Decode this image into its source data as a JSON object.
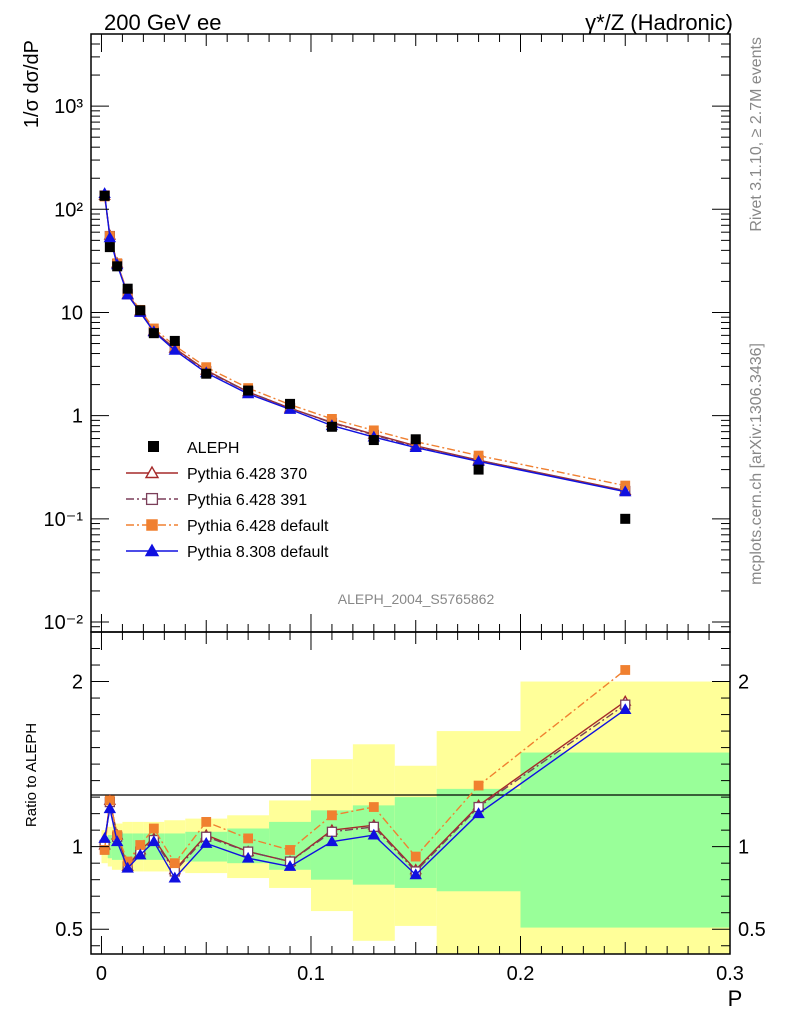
{
  "header": {
    "left": "200 GeV ee",
    "right": "γ*/Z (Hadronic)"
  },
  "side_text": {
    "events": "Rivet 3.1.10, ≥ 2.7M events",
    "source": "mcplots.cern.ch [arXiv:1306.3436]"
  },
  "chart_data": [
    {
      "type": "scatter",
      "panel": "main",
      "ylabel": "1/σ  dσ/dP",
      "yscale": "log",
      "ylim": [
        0.008,
        5000
      ],
      "xlim": [
        -0.005,
        0.3
      ],
      "y_tick_labels": [
        "10⁻²",
        "10⁻¹",
        "1",
        "10",
        "10²",
        "10³"
      ],
      "watermark": "ALEPH_2004_S5765862",
      "data": {
        "name": "ALEPH",
        "color": "#000000",
        "x": [
          0.0015,
          0.004,
          0.0075,
          0.0125,
          0.0185,
          0.025,
          0.035,
          0.05,
          0.07,
          0.09,
          0.11,
          0.13,
          0.15,
          0.18,
          0.25
        ],
        "y": [
          135,
          43,
          28,
          17,
          10.5,
          6.3,
          5.3,
          2.55,
          1.75,
          1.3,
          0.78,
          0.58,
          0.59,
          0.3,
          0.1
        ]
      },
      "series": [
        {
          "name": "Pythia 6.428 370",
          "color": "#a52a2a",
          "style": "solid",
          "marker": "triangle-open",
          "y": [
            136,
            56,
            30,
            15,
            10.3,
            6.6,
            4.5,
            2.75,
            1.7,
            1.18,
            0.86,
            0.66,
            0.51,
            0.37,
            0.188
          ]
        },
        {
          "name": "Pythia 6.428 391",
          "color": "#7b3f5a",
          "style": "dashdot",
          "marker": "square-open",
          "y": [
            136,
            55,
            29.5,
            15,
            10.2,
            6.5,
            4.45,
            2.7,
            1.7,
            1.18,
            0.85,
            0.65,
            0.5,
            0.37,
            0.186
          ]
        },
        {
          "name": "Pythia 6.428 default",
          "color": "#f08030",
          "style": "dashdot",
          "marker": "square",
          "y": [
            133,
            55,
            30,
            15.5,
            10.6,
            7.0,
            4.75,
            2.95,
            1.85,
            1.28,
            0.93,
            0.72,
            0.56,
            0.41,
            0.21
          ]
        },
        {
          "name": "Pythia 8.308 default",
          "color": "#1010e0",
          "style": "solid",
          "marker": "triangle",
          "y": [
            142,
            53,
            29,
            14.8,
            10.0,
            6.5,
            4.3,
            2.6,
            1.63,
            1.15,
            0.8,
            0.62,
            0.49,
            0.36,
            0.183
          ]
        }
      ]
    },
    {
      "type": "line",
      "panel": "ratio",
      "ylabel": "Ratio to ALEPH",
      "xlabel": "P",
      "ylim": [
        0.35,
        2.3
      ],
      "xlim": [
        -0.005,
        0.3
      ],
      "x_tick_labels": [
        "0",
        "0.1",
        "0.2",
        "0.3"
      ],
      "y_tick_labels": [
        "0.5",
        "1",
        "2"
      ],
      "bands": [
        {
          "x0": 0.0,
          "x1": 0.003,
          "green": [
            0.95,
            1.05
          ],
          "yellow": [
            0.9,
            1.1
          ]
        },
        {
          "x0": 0.003,
          "x1": 0.005,
          "green": [
            0.93,
            1.07
          ],
          "yellow": [
            0.88,
            1.12
          ]
        },
        {
          "x0": 0.005,
          "x1": 0.01,
          "green": [
            0.92,
            1.08
          ],
          "yellow": [
            0.86,
            1.14
          ]
        },
        {
          "x0": 0.01,
          "x1": 0.015,
          "green": [
            0.92,
            1.08
          ],
          "yellow": [
            0.85,
            1.15
          ]
        },
        {
          "x0": 0.015,
          "x1": 0.02,
          "green": [
            0.92,
            1.08
          ],
          "yellow": [
            0.85,
            1.15
          ]
        },
        {
          "x0": 0.02,
          "x1": 0.03,
          "green": [
            0.92,
            1.08
          ],
          "yellow": [
            0.85,
            1.15
          ]
        },
        {
          "x0": 0.03,
          "x1": 0.04,
          "green": [
            0.92,
            1.08
          ],
          "yellow": [
            0.85,
            1.16
          ]
        },
        {
          "x0": 0.04,
          "x1": 0.06,
          "green": [
            0.91,
            1.09
          ],
          "yellow": [
            0.84,
            1.17
          ]
        },
        {
          "x0": 0.06,
          "x1": 0.08,
          "green": [
            0.9,
            1.11
          ],
          "yellow": [
            0.81,
            1.19
          ]
        },
        {
          "x0": 0.08,
          "x1": 0.1,
          "green": [
            0.86,
            1.15
          ],
          "yellow": [
            0.75,
            1.28
          ]
        },
        {
          "x0": 0.1,
          "x1": 0.12,
          "green": [
            0.8,
            1.22
          ],
          "yellow": [
            0.61,
            1.53
          ]
        },
        {
          "x0": 0.12,
          "x1": 0.14,
          "green": [
            0.77,
            1.25
          ],
          "yellow": [
            0.43,
            1.62
          ]
        },
        {
          "x0": 0.14,
          "x1": 0.16,
          "green": [
            0.75,
            1.3
          ],
          "yellow": [
            0.52,
            1.49
          ]
        },
        {
          "x0": 0.16,
          "x1": 0.2,
          "green": [
            0.73,
            1.35
          ],
          "yellow": [
            0.3,
            1.7
          ]
        },
        {
          "x0": 0.2,
          "x1": 0.3,
          "green": [
            0.51,
            1.57
          ],
          "yellow": [
            0.3,
            2.0
          ]
        }
      ],
      "series": [
        {
          "name": "Pythia 6.428 370",
          "color": "#a52a2a",
          "style": "solid",
          "marker": "triangle-open",
          "y": [
            1.01,
            1.28,
            1.07,
            0.88,
            0.98,
            1.05,
            0.86,
            1.07,
            0.97,
            0.91,
            1.1,
            1.13,
            0.86,
            1.25,
            1.88
          ]
        },
        {
          "name": "Pythia 6.428 391",
          "color": "#7b3f5a",
          "style": "dashdot",
          "marker": "square-open",
          "y": [
            1.01,
            1.27,
            1.06,
            0.88,
            0.97,
            1.04,
            0.85,
            1.06,
            0.97,
            0.91,
            1.09,
            1.12,
            0.85,
            1.24,
            1.86
          ]
        },
        {
          "name": "Pythia 6.428 default",
          "color": "#f08030",
          "style": "dashdot",
          "marker": "square",
          "y": [
            0.98,
            1.28,
            1.07,
            0.91,
            1.01,
            1.11,
            0.9,
            1.15,
            1.05,
            0.98,
            1.19,
            1.24,
            0.94,
            1.37,
            2.07
          ]
        },
        {
          "name": "Pythia 8.308 default",
          "color": "#1010e0",
          "style": "solid",
          "marker": "triangle",
          "y": [
            1.05,
            1.23,
            1.03,
            0.87,
            0.95,
            1.03,
            0.81,
            1.02,
            0.93,
            0.88,
            1.03,
            1.07,
            0.83,
            1.2,
            1.83
          ]
        }
      ]
    }
  ]
}
